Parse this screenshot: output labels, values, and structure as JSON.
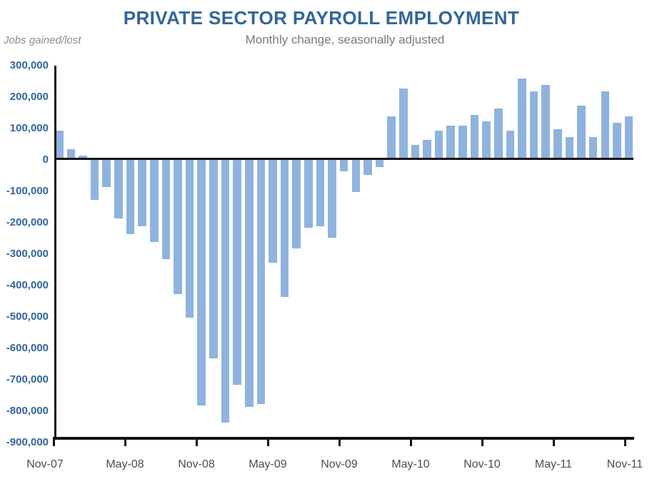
{
  "header": {
    "title": "PRIVATE SECTOR PAYROLL EMPLOYMENT",
    "subtitle": "Monthly change, seasonally adjusted",
    "y_unit_label": "Jobs gained/lost"
  },
  "colors": {
    "title": "#33669A",
    "subtitle": "#7A7A7A",
    "unit_label": "#8C8C8C",
    "bar": "#8FB3DE",
    "y_tick_label": "#33669A",
    "x_tick_label": "#4D4D4D",
    "axis": "#111111"
  },
  "chart_data": {
    "type": "bar",
    "title": "PRIVATE SECTOR PAYROLL EMPLOYMENT",
    "subtitle": "Monthly change, seasonally adjusted",
    "ylabel": "Jobs gained/lost",
    "xlabel": "",
    "grid": false,
    "legend_position": "none",
    "ylim": [
      -900000,
      300000
    ],
    "y_tick_step": 100000,
    "x_tick_every": 6,
    "x_tick_labels": [
      "Nov-07",
      "May-08",
      "Nov-08",
      "May-09",
      "Nov-09",
      "May-10",
      "Nov-10",
      "May-11",
      "Nov-11"
    ],
    "x": [
      "Nov-07",
      "Dec-07",
      "Jan-08",
      "Feb-08",
      "Mar-08",
      "Apr-08",
      "May-08",
      "Jun-08",
      "Jul-08",
      "Aug-08",
      "Sep-08",
      "Oct-08",
      "Nov-08",
      "Dec-08",
      "Jan-09",
      "Feb-09",
      "Mar-09",
      "Apr-09",
      "May-09",
      "Jun-09",
      "Jul-09",
      "Aug-09",
      "Sep-09",
      "Oct-09",
      "Nov-09",
      "Dec-09",
      "Jan-10",
      "Feb-10",
      "Mar-10",
      "Apr-10",
      "May-10",
      "Jun-10",
      "Jul-10",
      "Aug-10",
      "Sep-10",
      "Oct-10",
      "Nov-10",
      "Dec-10",
      "Jan-11",
      "Feb-11",
      "Mar-11",
      "Apr-11",
      "May-11",
      "Jun-11",
      "Jul-11",
      "Aug-11",
      "Sep-11",
      "Oct-11",
      "Nov-11"
    ],
    "values": [
      90000,
      30000,
      10000,
      -130000,
      -90000,
      -190000,
      -240000,
      -215000,
      -265000,
      -320000,
      -430000,
      -505000,
      -785000,
      -635000,
      -840000,
      -720000,
      -790000,
      -780000,
      -330000,
      -440000,
      -285000,
      -220000,
      -215000,
      -250000,
      -40000,
      -105000,
      -50000,
      -25000,
      135000,
      225000,
      45000,
      60000,
      90000,
      105000,
      105000,
      140000,
      120000,
      160000,
      90000,
      255000,
      215000,
      235000,
      95000,
      70000,
      170000,
      70000,
      215000,
      115000,
      135000
    ]
  }
}
